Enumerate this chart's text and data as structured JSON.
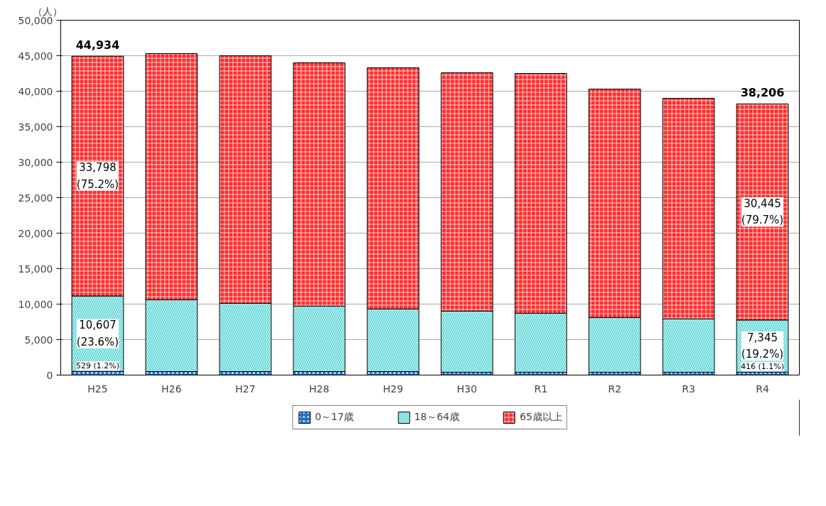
{
  "chart_data": {
    "type": "bar",
    "stacked": true,
    "ylabel": "（人）",
    "categories": [
      "H25",
      "H26",
      "H27",
      "H28",
      "H29",
      "H30",
      "R1",
      "R2",
      "R3",
      "R4"
    ],
    "series": [
      {
        "name": "0～17歳",
        "color": "#1f6fd0",
        "values": [
          529,
          500,
          500,
          500,
          500,
          400,
          400,
          400,
          400,
          416
        ],
        "value_labels": [
          "529 (1.2%)",
          null,
          null,
          null,
          null,
          null,
          null,
          null,
          null,
          "416 (1.1%)"
        ]
      },
      {
        "name": "18～64歳",
        "color": "#66d9d9",
        "values": [
          10607,
          10100,
          9600,
          9200,
          8800,
          8600,
          8300,
          7700,
          7500,
          7345
        ],
        "value_labels": [
          "10,607\n(23.6%)",
          null,
          null,
          null,
          null,
          null,
          null,
          null,
          null,
          "7,345\n(19.2%)"
        ]
      },
      {
        "name": "65歳以上",
        "color": "#ff2a2a",
        "values": [
          33798,
          34700,
          34900,
          34300,
          34000,
          33600,
          33800,
          32200,
          31100,
          30445
        ],
        "value_labels": [
          "33,798\n(75.2%)",
          null,
          null,
          null,
          null,
          null,
          null,
          null,
          null,
          "30,445\n(79.7%)"
        ]
      }
    ],
    "totals": [
      "44,934",
      null,
      null,
      null,
      null,
      null,
      null,
      null,
      null,
      "38,206"
    ],
    "ylim": [
      0,
      50000
    ],
    "yticks": [
      0,
      {
        "value": 5000,
        "label": "5,000"
      },
      {
        "value": 10000,
        "label": "10,000"
      },
      {
        "value": 15000,
        "label": "15,000"
      },
      {
        "value": 20000,
        "label": "20,000"
      },
      {
        "value": 25000,
        "label": "25,000"
      },
      {
        "value": 30000,
        "label": "30,000"
      },
      {
        "value": 35000,
        "label": "35,000"
      },
      {
        "value": 40000,
        "label": "40,000"
      },
      {
        "value": 45000,
        "label": "45,000"
      },
      {
        "value": 50000,
        "label": "50,000"
      }
    ],
    "grid": "y",
    "legend": "bottom"
  }
}
